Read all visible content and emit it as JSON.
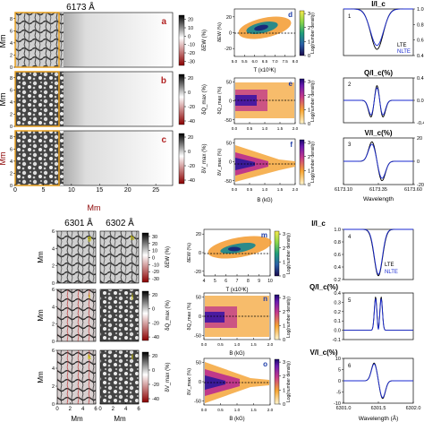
{
  "header": {
    "top_wavelength": "6173 Å",
    "bot_wavelength_1": "6301 Å",
    "bot_wavelength_2": "6302 Å"
  },
  "panel_letters": {
    "a": "a",
    "b": "b",
    "c": "c",
    "d": "d",
    "e": "e",
    "f": "f",
    "g": "g",
    "h": "h",
    "i": "i",
    "j": "j",
    "k": "k",
    "l": "l",
    "m": "m",
    "n": "n",
    "o": "o"
  },
  "axis_labels": {
    "mm": "Mm",
    "temp": "T (x10³K)",
    "field": "B (kG)",
    "wavelength": "Wavelength",
    "density": "Log(number density)"
  },
  "colorbar_labels": {
    "dEW": "δEW (%)",
    "dQmax": "δQ_max (%)",
    "dVmax": "δV_max (%)"
  },
  "profile_titles": {
    "intensity": "I/I_c",
    "q": "Q/I_c(%)",
    "v": "V/I_c(%)"
  },
  "legend": {
    "lte": "LTE",
    "nlte": "NLTE",
    "lte_color": "#000000",
    "nlte_color": "#1a2ad1"
  },
  "profile_numbers": [
    "1",
    "2",
    "3",
    "4",
    "5",
    "6"
  ],
  "chart_data": [
    {
      "type": "heatmap",
      "id": "a",
      "quantity": "δEW (%)",
      "xlim": [
        0,
        28
      ],
      "ylim": [
        0,
        9
      ],
      "colorbar_ticks": [
        20,
        10,
        0,
        -10,
        -20,
        -30
      ]
    },
    {
      "type": "heatmap",
      "id": "b",
      "quantity": "δQ_max (%)",
      "xlim": [
        0,
        28
      ],
      "ylim": [
        0,
        9
      ],
      "colorbar_ticks": [
        20,
        0,
        -20,
        -40
      ]
    },
    {
      "type": "heatmap",
      "id": "c",
      "quantity": "δV_max (%)",
      "xlim": [
        0,
        28
      ],
      "ylim": [
        0,
        9
      ],
      "colorbar_ticks": [
        20,
        0,
        -20,
        -40
      ],
      "x_ticks": [
        0,
        5,
        10,
        15,
        20,
        25
      ],
      "y_ticks": [
        0,
        2,
        4,
        6,
        8
      ]
    },
    {
      "type": "scatter",
      "id": "d",
      "ylabel": "δEW (%)",
      "xlabel": "T (x10³K)",
      "xlim": [
        5.0,
        8.0
      ],
      "ylim": [
        -30,
        30
      ],
      "x_ticks": [
        "5.0",
        "5.5",
        "6.0",
        "6.5",
        "7.0",
        "7.5",
        "8.0"
      ],
      "y_ticks": [
        20,
        0,
        -20
      ],
      "colorbar_ticks": [
        0,
        1,
        2,
        3
      ]
    },
    {
      "type": "scatter",
      "id": "e",
      "ylabel": "δQ_max (%)",
      "xlim": [
        0,
        2
      ],
      "ylim": [
        -50,
        50
      ],
      "y_ticks": [
        50,
        0,
        -50
      ],
      "x_ticks": [
        "0.0",
        "0.5",
        "1.0",
        "1.5",
        "2.0"
      ],
      "colorbar_ticks": [
        0,
        1,
        2,
        3
      ]
    },
    {
      "type": "scatter",
      "id": "f",
      "ylabel": "δV_max (%)",
      "xlabel": "B (kG)",
      "xlim": [
        0,
        2
      ],
      "ylim": [
        -50,
        50
      ],
      "y_ticks": [
        50,
        0,
        -50
      ],
      "x_ticks": [
        "0.0",
        "0.5",
        "1.0",
        "1.5",
        "2.0"
      ],
      "colorbar_ticks": [
        0,
        1,
        2,
        3
      ]
    },
    {
      "type": "line",
      "id": "p1",
      "title": "I/I_c",
      "xlim": [
        6173.1,
        6173.6
      ],
      "ylim": [
        0.4,
        1.0
      ],
      "y_ticks": [
        "1.0",
        "0.8",
        "0.6",
        "0.4"
      ],
      "series": [
        {
          "name": "LTE"
        },
        {
          "name": "NLTE"
        }
      ]
    },
    {
      "type": "line",
      "id": "p2",
      "title": "Q/I_c(%)",
      "xlim": [
        6173.1,
        6173.6
      ],
      "ylim": [
        -0.4,
        0.4
      ],
      "y_ticks": [
        "0.4",
        "0.0",
        "-0.4"
      ]
    },
    {
      "type": "line",
      "id": "p3",
      "title": "V/I_c(%)",
      "xlim": [
        6173.1,
        6173.6
      ],
      "ylim": [
        -20,
        20
      ],
      "y_ticks": [
        20,
        0,
        -20
      ],
      "x_ticks": [
        "6173.10",
        "6173.35",
        "6173.60"
      ],
      "xlabel": "Wavelength"
    },
    {
      "type": "heatmap",
      "id": "g",
      "quantity": "δEW (%)",
      "xlim": [
        0,
        6
      ],
      "ylim": [
        0,
        6
      ],
      "colorbar_ticks": [
        30,
        20,
        10,
        0,
        -10,
        -20,
        -30
      ]
    },
    {
      "type": "heatmap",
      "id": "i",
      "quantity": "δQ_max (%)",
      "colorbar_ticks": [
        20,
        0,
        -20,
        -40
      ]
    },
    {
      "type": "heatmap",
      "id": "k",
      "quantity": "δV_max (%)",
      "colorbar_ticks": [
        20,
        0,
        -20,
        -40
      ],
      "x_ticks": [
        0,
        2,
        4,
        6
      ],
      "y_ticks": [
        0,
        2,
        4,
        6
      ]
    },
    {
      "type": "scatter",
      "id": "m",
      "ylabel": "δEW (%)",
      "xlabel": "T (x10³K)",
      "xlim": [
        4,
        10
      ],
      "ylim": [
        -20,
        20
      ],
      "y_ticks": [
        20,
        0,
        -20
      ],
      "x_ticks": [
        "4",
        "5",
        "6",
        "7",
        "8",
        "9",
        "10"
      ],
      "colorbar_ticks": [
        0,
        1,
        2,
        3
      ]
    },
    {
      "type": "scatter",
      "id": "n",
      "ylabel": "δQ_max (%)",
      "xlabel": "B (kG)",
      "xlim": [
        0,
        2
      ],
      "ylim": [
        -50,
        50
      ],
      "y_ticks": [
        50,
        0,
        -50
      ],
      "x_ticks": [
        "0.0",
        "0.5",
        "1.0",
        "1.5",
        "2.0"
      ],
      "colorbar_ticks": [
        0,
        1,
        2,
        3
      ]
    },
    {
      "type": "scatter",
      "id": "o",
      "ylabel": "δV_max (%)",
      "xlabel": "B (kG)",
      "xlim": [
        0,
        2
      ],
      "ylim": [
        -50,
        50
      ],
      "y_ticks": [
        50,
        0,
        -50
      ],
      "x_ticks": [
        "0.0",
        "0.5",
        "1.0",
        "1.5",
        "2.0"
      ],
      "colorbar_ticks": [
        0,
        1,
        2,
        3
      ]
    },
    {
      "type": "line",
      "id": "p4",
      "title": "I/I_c",
      "xlim": [
        6301.0,
        6302.0
      ],
      "ylim": [
        0.2,
        1.0
      ],
      "y_ticks": [
        "1.0",
        "0.8",
        "0.6",
        "0.4",
        "0.2"
      ],
      "series": [
        {
          "name": "LTE"
        },
        {
          "name": "NLTE"
        }
      ]
    },
    {
      "type": "line",
      "id": "p5",
      "title": "Q/I_c(%)",
      "xlim": [
        6301.0,
        6302.0
      ],
      "ylim": [
        -0.1,
        0.4
      ],
      "y_ticks": [
        "0.4",
        "0.3",
        "0.2",
        "0.1",
        "0.0",
        "-0.1"
      ]
    },
    {
      "type": "line",
      "id": "p6",
      "title": "V/I_c(%)",
      "xlim": [
        6301.0,
        6302.0
      ],
      "ylim": [
        -10,
        10
      ],
      "y_ticks": [
        10,
        5,
        0,
        -5,
        -10
      ],
      "x_ticks": [
        "6301.0",
        "6301.5",
        "6302.0"
      ],
      "xlabel": "Wavelength (Å)"
    }
  ]
}
